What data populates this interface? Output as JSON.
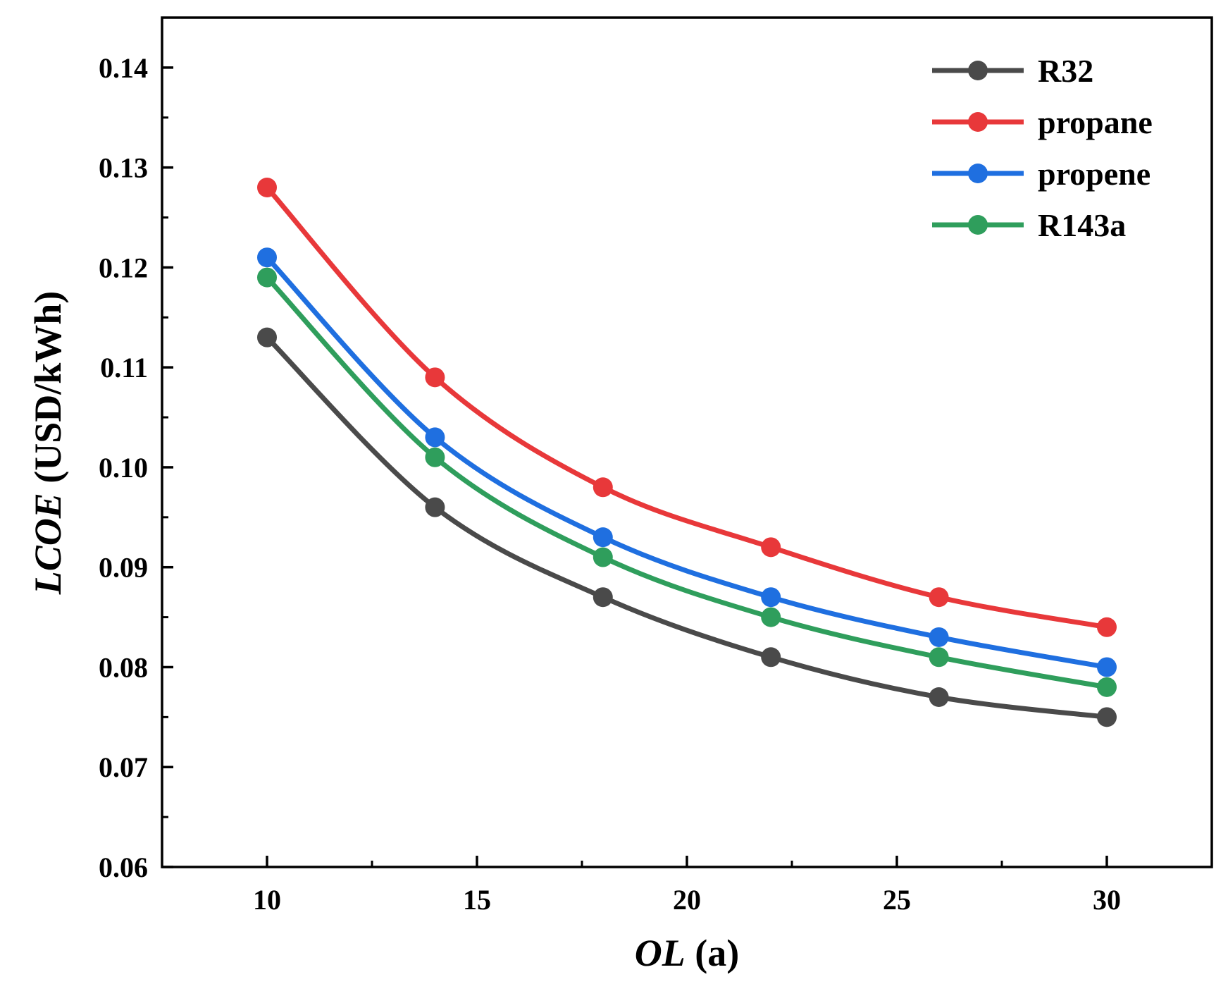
{
  "chart_data": {
    "type": "line",
    "title": "",
    "xlabel": {
      "italic": "OL",
      "plain": " (a)"
    },
    "ylabel": {
      "italic": "LCOE",
      "plain": " (USD/kWh)"
    },
    "x": [
      10,
      14,
      18,
      22,
      26,
      30
    ],
    "xlim": [
      7.5,
      32.5
    ],
    "ylim": [
      0.06,
      0.145
    ],
    "xticks": [
      10,
      15,
      20,
      25,
      30
    ],
    "xtick_labels": [
      "10",
      "15",
      "20",
      "25",
      "30"
    ],
    "yticks": [
      0.06,
      0.07,
      0.08,
      0.09,
      0.1,
      0.11,
      0.12,
      0.13,
      0.14
    ],
    "ytick_labels": [
      "0.06",
      "0.07",
      "0.08",
      "0.09",
      "0.10",
      "0.11",
      "0.12",
      "0.13",
      "0.14"
    ],
    "legend_position": "top-right",
    "grid": false,
    "series": [
      {
        "name": "R32",
        "color": "#4a4a4a",
        "values": [
          0.113,
          0.096,
          0.087,
          0.081,
          0.077,
          0.075
        ]
      },
      {
        "name": "propane",
        "color": "#e8383a",
        "values": [
          0.128,
          0.109,
          0.098,
          0.092,
          0.087,
          0.084
        ]
      },
      {
        "name": "propene",
        "color": "#1f6fe0",
        "values": [
          0.121,
          0.103,
          0.093,
          0.087,
          0.083,
          0.08
        ]
      },
      {
        "name": "R143a",
        "color": "#2f9e5c",
        "values": [
          0.119,
          0.101,
          0.091,
          0.085,
          0.081,
          0.078
        ]
      }
    ]
  }
}
